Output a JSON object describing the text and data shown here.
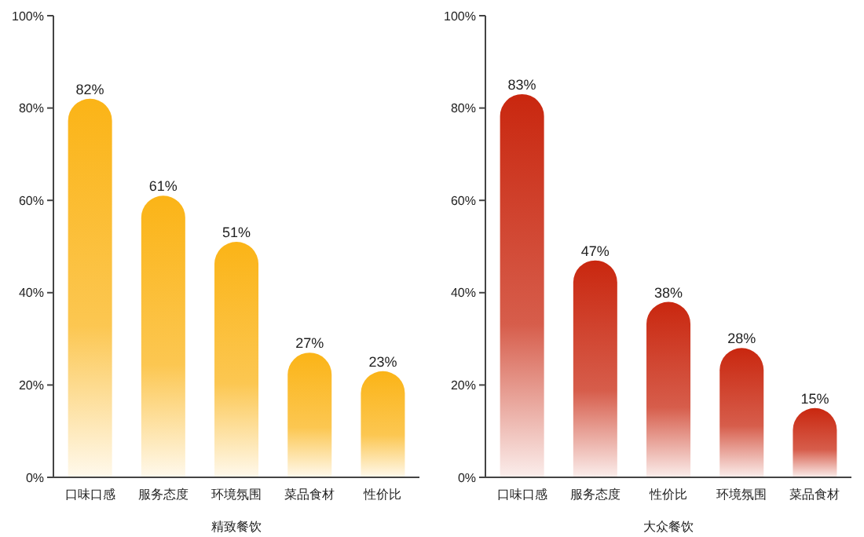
{
  "chart_data": [
    {
      "type": "bar",
      "xlabel": "精致餐饮",
      "categories": [
        "口味口感",
        "服务态度",
        "环境氛围",
        "菜品食材",
        "性价比"
      ],
      "values": [
        82,
        61,
        51,
        27,
        23
      ],
      "color": "#fbb417",
      "value_labels": [
        "82%",
        "61%",
        "51%",
        "27%",
        "23%"
      ],
      "ylim": [
        0,
        100
      ],
      "yticks": [
        {
          "value": 0,
          "label": "0%"
        },
        {
          "value": 20,
          "label": "20%"
        },
        {
          "value": 40,
          "label": "40%"
        },
        {
          "value": 60,
          "label": "60%"
        },
        {
          "value": 80,
          "label": "80%"
        },
        {
          "value": 100,
          "label": "100%"
        }
      ]
    },
    {
      "type": "bar",
      "xlabel": "大众餐饮",
      "categories": [
        "口味口感",
        "服务态度",
        "性价比",
        "环境氛围",
        "菜品食材"
      ],
      "values": [
        83,
        47,
        38,
        28,
        15
      ],
      "color": "#c9270f",
      "value_labels": [
        "83%",
        "47%",
        "38%",
        "28%",
        "15%"
      ],
      "ylim": [
        0,
        100
      ],
      "yticks": [
        {
          "value": 0,
          "label": "0%"
        },
        {
          "value": 20,
          "label": "20%"
        },
        {
          "value": 40,
          "label": "40%"
        },
        {
          "value": 60,
          "label": "60%"
        },
        {
          "value": 80,
          "label": "80%"
        },
        {
          "value": 100,
          "label": "100%"
        }
      ]
    }
  ]
}
